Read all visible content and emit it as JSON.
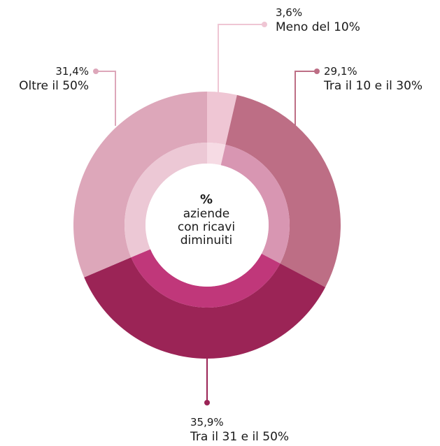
{
  "chart_data": {
    "type": "pie",
    "center_label": [
      "%",
      "aziende",
      "con ricavi",
      "diminuiti"
    ],
    "slices": [
      {
        "label": "Meno del 10%",
        "value": 3.6,
        "value_label": "3,6%",
        "outer_color": "#efc6d4",
        "inner_color": "#f6dbe4"
      },
      {
        "label": "Tra il 10 e il 30%",
        "value": 29.1,
        "value_label": "29,1%",
        "outer_color": "#bd6e85",
        "inner_color": "#d896b2"
      },
      {
        "label": "Tra il 31 e il 50%",
        "value": 35.9,
        "value_label": "35,9%",
        "outer_color": "#9b2456",
        "inner_color": "#c0377a"
      },
      {
        "label": "Oltre il 50%",
        "value": 31.4,
        "value_label": "31,4%",
        "outer_color": "#dda7ba",
        "inner_color": "#ecc8d5"
      }
    ]
  }
}
